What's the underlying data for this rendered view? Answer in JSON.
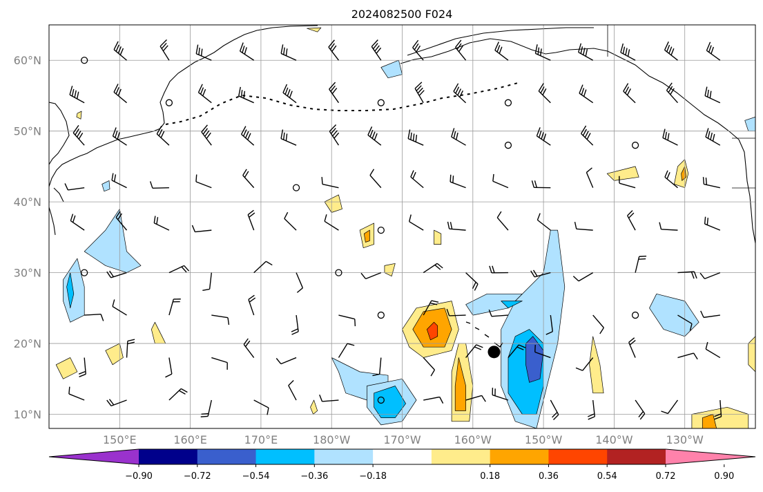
{
  "title": "2024082500 F024",
  "map": {
    "extent": {
      "lon_min": 140,
      "lon_max": 240,
      "lat_min": 8,
      "lat_max": 65
    },
    "lat_ticks": [
      {
        "value": 10,
        "label": "10°N"
      },
      {
        "value": 20,
        "label": "20°N"
      },
      {
        "value": 30,
        "label": "30°N"
      },
      {
        "value": 40,
        "label": "40°N"
      },
      {
        "value": 50,
        "label": "50°N"
      },
      {
        "value": 60,
        "label": "60°N"
      }
    ],
    "lon_ticks": [
      {
        "value": 150,
        "label": "150°E"
      },
      {
        "value": 160,
        "label": "160°E"
      },
      {
        "value": 170,
        "label": "170°E"
      },
      {
        "value": 180,
        "label": "180°W"
      },
      {
        "value": 190,
        "label": "170°W"
      },
      {
        "value": 200,
        "label": "160°W"
      },
      {
        "value": 210,
        "label": "150°W"
      },
      {
        "value": 220,
        "label": "140°W"
      },
      {
        "value": 230,
        "label": "130°W"
      }
    ],
    "grid": true,
    "marker": {
      "lon": 203,
      "lat": 18.8,
      "name": "storm-center-marker"
    }
  },
  "colorbar": {
    "extend": "both",
    "colors": [
      "#9a32cd",
      "#00008b",
      "#3a5fcd",
      "#00bfff",
      "#b0e2ff",
      "#ffffff",
      "#ffec8b",
      "#ffa500",
      "#ff4500",
      "#b22222",
      "#ff82ab"
    ],
    "ticks": [
      "−0.90",
      "−0.72",
      "−0.54",
      "−0.36",
      "−0.18",
      "0.18",
      "0.36",
      "0.54",
      "0.72",
      "0.90"
    ]
  },
  "contours": [
    {
      "color": "#b0e2ff",
      "pts": [
        [
          212,
          36
        ],
        [
          213,
          28
        ],
        [
          212,
          20
        ],
        [
          210,
          12
        ],
        [
          209,
          8
        ],
        [
          206,
          9
        ],
        [
          204,
          14
        ],
        [
          204,
          22
        ],
        [
          206,
          26
        ],
        [
          210,
          30
        ],
        [
          211,
          36
        ]
      ]
    },
    {
      "color": "#b0e2ff",
      "pts": [
        [
          207,
          27
        ],
        [
          205,
          25
        ],
        [
          200,
          24
        ],
        [
          199,
          25.5
        ],
        [
          202,
          27
        ]
      ]
    },
    {
      "color": "#00bfff",
      "pts": [
        [
          208,
          22
        ],
        [
          210,
          20
        ],
        [
          210,
          14
        ],
        [
          209,
          10
        ],
        [
          207,
          10
        ],
        [
          205,
          13
        ],
        [
          205,
          18
        ],
        [
          206,
          21
        ]
      ]
    },
    {
      "color": "#00bfff",
      "pts": [
        [
          207,
          26
        ],
        [
          205,
          25
        ],
        [
          204,
          26
        ]
      ]
    },
    {
      "color": "#3a5fcd",
      "pts": [
        [
          208.5,
          21
        ],
        [
          210,
          19
        ],
        [
          209.5,
          15
        ],
        [
          208,
          14.5
        ],
        [
          207.5,
          17
        ],
        [
          207.5,
          20
        ]
      ]
    },
    {
      "color": "#ffec8b",
      "pts": [
        [
          197,
          26
        ],
        [
          192,
          25
        ],
        [
          190,
          22
        ],
        [
          191,
          19.5
        ],
        [
          193,
          18
        ],
        [
          197,
          19
        ],
        [
          198,
          22
        ]
      ]
    },
    {
      "color": "#ffa500",
      "pts": [
        [
          196,
          25
        ],
        [
          193,
          24.5
        ],
        [
          191.5,
          22
        ],
        [
          193,
          19.5
        ],
        [
          196,
          19.5
        ],
        [
          197,
          22
        ]
      ]
    },
    {
      "color": "#ff4500",
      "pts": [
        [
          194.5,
          23
        ],
        [
          193.5,
          22
        ],
        [
          194,
          20.5
        ],
        [
          195,
          21
        ],
        [
          195,
          22.5
        ]
      ]
    },
    {
      "color": "#ffec8b",
      "pts": [
        [
          198,
          20
        ],
        [
          197,
          16
        ],
        [
          197,
          9
        ],
        [
          199.5,
          9
        ],
        [
          200,
          14
        ],
        [
          199,
          20
        ]
      ]
    },
    {
      "color": "#ffa500",
      "pts": [
        [
          198,
          18
        ],
        [
          197.5,
          14
        ],
        [
          197.5,
          10.5
        ],
        [
          199,
          10.5
        ],
        [
          199,
          14
        ]
      ]
    },
    {
      "color": "#b0e2ff",
      "pts": [
        [
          145,
          33
        ],
        [
          148,
          36
        ],
        [
          150,
          39
        ],
        [
          151,
          33
        ],
        [
          153,
          31
        ],
        [
          151,
          30
        ],
        [
          148,
          31
        ]
      ]
    },
    {
      "color": "#b0e2ff",
      "pts": [
        [
          142,
          29
        ],
        [
          144,
          32
        ],
        [
          145,
          28
        ],
        [
          145,
          24
        ],
        [
          143,
          23
        ],
        [
          142,
          26
        ]
      ]
    },
    {
      "color": "#00bfff",
      "pts": [
        [
          142.5,
          28
        ],
        [
          143,
          30
        ],
        [
          143.5,
          27
        ],
        [
          143,
          25
        ]
      ]
    },
    {
      "color": "#b0e2ff",
      "pts": [
        [
          180,
          18
        ],
        [
          184,
          16
        ],
        [
          188,
          15.5
        ],
        [
          188,
          13
        ],
        [
          185,
          12
        ],
        [
          182,
          13
        ],
        [
          181,
          16
        ]
      ]
    },
    {
      "color": "#b0e2ff",
      "pts": [
        [
          185,
          14
        ],
        [
          190,
          15
        ],
        [
          192,
          12
        ],
        [
          190,
          9
        ],
        [
          187,
          8.5
        ],
        [
          185,
          11
        ]
      ]
    },
    {
      "color": "#00bfff",
      "pts": [
        [
          186,
          13
        ],
        [
          189,
          14
        ],
        [
          190.5,
          11.5
        ],
        [
          189,
          9.5
        ],
        [
          187,
          9.5
        ],
        [
          186,
          11
        ]
      ]
    },
    {
      "color": "#b0e2ff",
      "pts": [
        [
          226,
          27
        ],
        [
          230,
          26
        ],
        [
          232,
          23
        ],
        [
          230,
          21
        ],
        [
          227,
          22
        ],
        [
          225,
          25
        ]
      ]
    },
    {
      "color": "#b0e2ff",
      "pts": [
        [
          187,
          59
        ],
        [
          189.5,
          60
        ],
        [
          190,
          58
        ],
        [
          188,
          57.5
        ]
      ]
    },
    {
      "color": "#ffec8b",
      "pts": [
        [
          219,
          44
        ],
        [
          223,
          45
        ],
        [
          223.5,
          43.5
        ],
        [
          220,
          43
        ]
      ]
    },
    {
      "color": "#ffec8b",
      "pts": [
        [
          229,
          45
        ],
        [
          230,
          46
        ],
        [
          230.5,
          44
        ],
        [
          230,
          42
        ],
        [
          228.5,
          42.5
        ]
      ]
    },
    {
      "color": "#ffa500",
      "pts": [
        [
          229.5,
          44
        ],
        [
          230,
          45
        ],
        [
          230.2,
          43.5
        ],
        [
          229.6,
          43
        ]
      ]
    },
    {
      "color": "#ffec8b",
      "pts": [
        [
          179,
          40
        ],
        [
          181,
          41
        ],
        [
          181.5,
          39
        ],
        [
          180,
          38.5
        ]
      ]
    },
    {
      "color": "#ffec8b",
      "pts": [
        [
          184,
          36
        ],
        [
          186,
          37
        ],
        [
          186,
          34
        ],
        [
          184.5,
          33.5
        ]
      ]
    },
    {
      "color": "#ffa500",
      "pts": [
        [
          184.6,
          35.5
        ],
        [
          185.4,
          36
        ],
        [
          185.4,
          34.5
        ],
        [
          184.8,
          34.3
        ]
      ]
    },
    {
      "color": "#ffec8b",
      "pts": [
        [
          194.5,
          36
        ],
        [
          195.5,
          35.5
        ],
        [
          195.5,
          34
        ],
        [
          194.5,
          34
        ]
      ]
    },
    {
      "color": "#ffec8b",
      "pts": [
        [
          187.5,
          31
        ],
        [
          189,
          31.3
        ],
        [
          188.5,
          29.5
        ],
        [
          187.5,
          30
        ]
      ]
    },
    {
      "color": "#ffec8b",
      "pts": [
        [
          155,
          23
        ],
        [
          156,
          21
        ],
        [
          156.5,
          20
        ],
        [
          155,
          20
        ],
        [
          154.5,
          22
        ]
      ]
    },
    {
      "color": "#ffec8b",
      "pts": [
        [
          148,
          19
        ],
        [
          150,
          20
        ],
        [
          150.5,
          18
        ],
        [
          149,
          17
        ]
      ]
    },
    {
      "color": "#ffec8b",
      "pts": [
        [
          141,
          17
        ],
        [
          143,
          18
        ],
        [
          144,
          16
        ],
        [
          142,
          15
        ]
      ]
    },
    {
      "color": "#ffec8b",
      "pts": [
        [
          217,
          21
        ],
        [
          218,
          17
        ],
        [
          218.5,
          13
        ],
        [
          217,
          13
        ],
        [
          216.5,
          17
        ]
      ]
    },
    {
      "color": "#ffec8b",
      "pts": [
        [
          239,
          20
        ],
        [
          240,
          21
        ],
        [
          240,
          16
        ],
        [
          239,
          17
        ]
      ]
    },
    {
      "color": "#ffec8b",
      "pts": [
        [
          231,
          10
        ],
        [
          236,
          11
        ],
        [
          239,
          10
        ],
        [
          239,
          8
        ],
        [
          231,
          8
        ]
      ]
    },
    {
      "color": "#ffa500",
      "pts": [
        [
          232.5,
          9.5
        ],
        [
          234,
          10
        ],
        [
          234.5,
          8
        ],
        [
          232.5,
          8
        ]
      ]
    },
    {
      "color": "#b0e2ff",
      "pts": [
        [
          240,
          52
        ],
        [
          238.5,
          51.5
        ],
        [
          239,
          50
        ],
        [
          240,
          50
        ]
      ]
    },
    {
      "color": "#ffec8b",
      "pts": [
        [
          144,
          52.5
        ],
        [
          144.6,
          52.8
        ],
        [
          144.5,
          51.7
        ],
        [
          143.9,
          52
        ]
      ]
    },
    {
      "color": "#b0e2ff",
      "pts": [
        [
          147.5,
          42.5
        ],
        [
          148.5,
          43
        ],
        [
          148.6,
          41.8
        ],
        [
          147.8,
          41.5
        ]
      ]
    },
    {
      "color": "#ffec8b",
      "pts": [
        [
          177,
          11
        ],
        [
          177.5,
          12
        ],
        [
          178,
          10.5
        ],
        [
          177.4,
          10
        ]
      ]
    },
    {
      "color": "#ffec8b",
      "pts": [
        [
          176.5,
          64.5
        ],
        [
          178.5,
          64.6
        ],
        [
          178,
          64
        ]
      ]
    }
  ]
}
